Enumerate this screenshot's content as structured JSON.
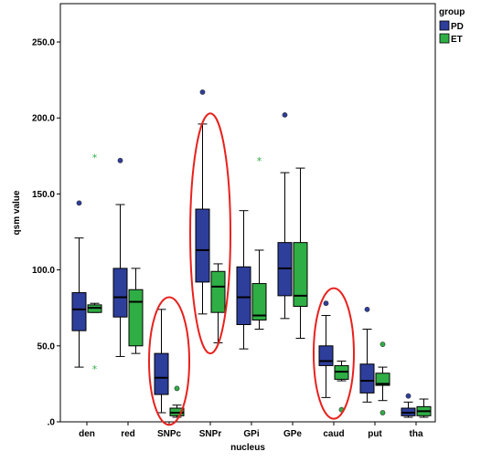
{
  "chart_data": {
    "type": "boxplot",
    "xlabel": "nucleus",
    "ylabel": "qsm value",
    "ylim": [
      0,
      260
    ],
    "yticks": [
      0,
      50,
      100,
      150,
      200,
      250
    ],
    "ytick_labels": [
      ".0",
      "50.0",
      "100.0",
      "150.0",
      "200.0",
      "250.0"
    ],
    "categories": [
      "den",
      "red",
      "SNPc",
      "SNPr",
      "GPi",
      "GPe",
      "caud",
      "put",
      "tha"
    ],
    "legend": {
      "title": "group",
      "position": "top-right",
      "entries": [
        {
          "label": "PD",
          "color": "#2e3e9b"
        },
        {
          "label": "ET",
          "color": "#2fae45"
        }
      ]
    },
    "series": [
      {
        "name": "PD",
        "color": "#2e3e9b",
        "boxes": [
          {
            "min": 36,
            "q1": 60,
            "median": 74,
            "q3": 85,
            "max": 121,
            "outliers": [
              {
                "v": 144,
                "sym": "o"
              }
            ]
          },
          {
            "min": 43,
            "q1": 69,
            "median": 82,
            "q3": 101,
            "max": 143,
            "outliers": [
              {
                "v": 172,
                "sym": "o"
              }
            ]
          },
          {
            "min": 6,
            "q1": 18,
            "median": 29,
            "q3": 45,
            "max": 74,
            "outliers": []
          },
          {
            "min": 71,
            "q1": 92,
            "median": 113,
            "q3": 140,
            "max": 196,
            "outliers": [
              {
                "v": 217,
                "sym": "o"
              }
            ]
          },
          {
            "min": 48,
            "q1": 64,
            "median": 82,
            "q3": 102,
            "max": 139,
            "outliers": []
          },
          {
            "min": 68,
            "q1": 83,
            "median": 101,
            "q3": 118,
            "max": 164,
            "outliers": [
              {
                "v": 202,
                "sym": "o"
              }
            ]
          },
          {
            "min": 16,
            "q1": 37,
            "median": 40,
            "q3": 50,
            "max": 70,
            "outliers": [
              {
                "v": 78,
                "sym": "o"
              }
            ]
          },
          {
            "min": 13,
            "q1": 19,
            "median": 27,
            "q3": 38,
            "max": 61,
            "outliers": [
              {
                "v": 74,
                "sym": "o"
              }
            ]
          },
          {
            "min": 3,
            "q1": 4,
            "median": 6,
            "q3": 9,
            "max": 13,
            "outliers": [
              {
                "v": 17,
                "sym": "o"
              }
            ]
          }
        ]
      },
      {
        "name": "ET",
        "color": "#2fae45",
        "boxes": [
          {
            "min": 72,
            "q1": 72,
            "median": 75,
            "q3": 77,
            "max": 78,
            "outliers": [
              {
                "v": 174,
                "sym": "*"
              },
              {
                "v": 35,
                "sym": "*"
              }
            ]
          },
          {
            "min": 45,
            "q1": 50,
            "median": 79,
            "q3": 87,
            "max": 101,
            "outliers": []
          },
          {
            "min": 3,
            "q1": 4,
            "median": 6,
            "q3": 9,
            "max": 11,
            "outliers": [
              {
                "v": 22,
                "sym": "o"
              }
            ]
          },
          {
            "min": 52,
            "q1": 72,
            "median": 89,
            "q3": 99,
            "max": 104,
            "outliers": []
          },
          {
            "min": 61,
            "q1": 67,
            "median": 70,
            "q3": 91,
            "max": 113,
            "outliers": [
              {
                "v": 172,
                "sym": "*"
              }
            ]
          },
          {
            "min": 55,
            "q1": 76,
            "median": 83,
            "q3": 118,
            "max": 167,
            "outliers": []
          },
          {
            "min": 27,
            "q1": 28,
            "median": 33,
            "q3": 37,
            "max": 40,
            "outliers": [
              {
                "v": 8,
                "sym": "o"
              }
            ]
          },
          {
            "min": 14,
            "q1": 24,
            "median": 25,
            "q3": 32,
            "max": 36,
            "outliers": [
              {
                "v": 51,
                "sym": "o"
              },
              {
                "v": 6,
                "sym": "o"
              }
            ]
          },
          {
            "min": 3,
            "q1": 4,
            "median": 7,
            "q3": 10,
            "max": 15,
            "outliers": []
          }
        ]
      }
    ],
    "annotations": [
      {
        "shape": "ellipse",
        "color": "#e8211d",
        "category": "SNPc",
        "y_range": [
          -2,
          82
        ]
      },
      {
        "shape": "ellipse",
        "color": "#e8211d",
        "category": "SNPr",
        "y_range": [
          45,
          203
        ]
      },
      {
        "shape": "ellipse",
        "color": "#e8211d",
        "category": "caud",
        "y_range": [
          2,
          88
        ]
      }
    ]
  }
}
